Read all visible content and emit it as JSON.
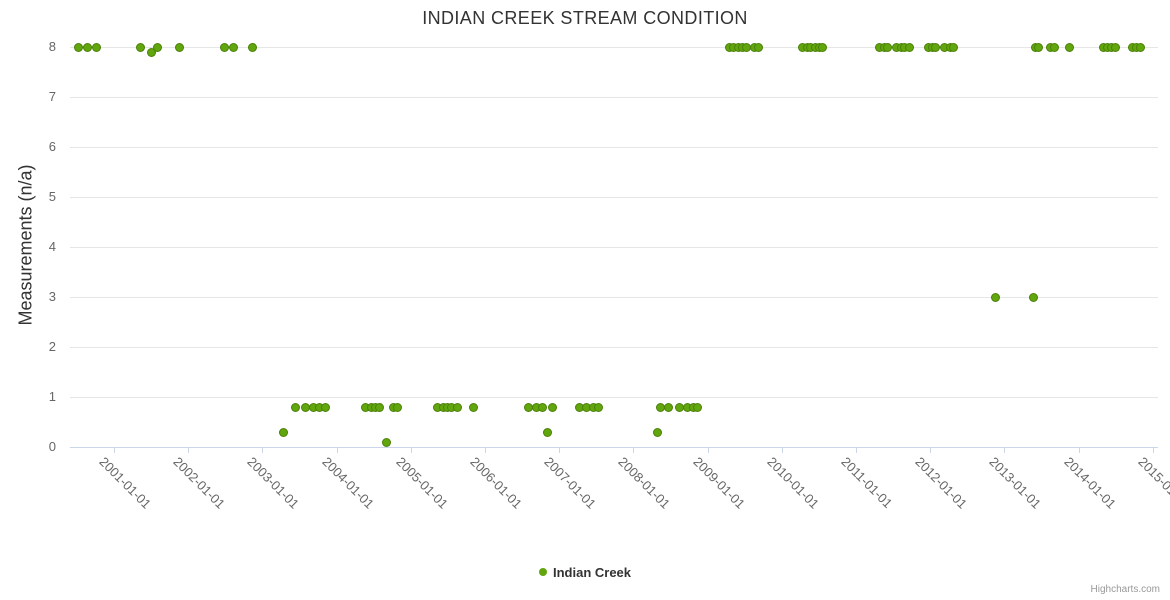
{
  "colors": {
    "series_green": "#61a60c",
    "title_text": "#333333",
    "axis_label_text": "#666666",
    "gridline": "#e6e6e6",
    "axis_line": "#ccd6eb",
    "credits_text": "#999999"
  },
  "credits": {
    "label": "Highcharts.com"
  },
  "chart_data": {
    "type": "scatter",
    "title": "INDIAN CREEK STREAM CONDITION",
    "xlabel": "",
    "ylabel": "Measurements (n/a)",
    "ylim": [
      0,
      8.3
    ],
    "yticks": [
      0,
      1,
      2,
      3,
      4,
      5,
      6,
      7,
      8
    ],
    "xtick_labels": [
      "2001-01-01",
      "2002-01-01",
      "2003-01-01",
      "2004-01-01",
      "2005-01-01",
      "2006-01-01",
      "2007-01-01",
      "2008-01-01",
      "2009-01-01",
      "2010-01-01",
      "2011-01-01",
      "2012-01-01",
      "2013-01-01",
      "2014-01-01",
      "2015-01-01"
    ],
    "grid": "horizontal-only",
    "legend_position": "bottom-center",
    "series": [
      {
        "name": "Indian Creek",
        "color": "#61a60c",
        "points": [
          {
            "date": "2000-07-11",
            "value": 8
          },
          {
            "date": "2000-08-25",
            "value": 8
          },
          {
            "date": "2000-10-08",
            "value": 8
          },
          {
            "date": "2001-05-08",
            "value": 8
          },
          {
            "date": "2001-07-04",
            "value": 7.9
          },
          {
            "date": "2001-08-03",
            "value": 8
          },
          {
            "date": "2001-11-17",
            "value": 8
          },
          {
            "date": "2002-06-27",
            "value": 8
          },
          {
            "date": "2002-08-10",
            "value": 8
          },
          {
            "date": "2002-11-14",
            "value": 8
          },
          {
            "date": "2003-04-12",
            "value": 0.3
          },
          {
            "date": "2003-06-13",
            "value": 0.8
          },
          {
            "date": "2003-07-31",
            "value": 0.8
          },
          {
            "date": "2003-09-09",
            "value": 0.8
          },
          {
            "date": "2003-10-08",
            "value": 0.8
          },
          {
            "date": "2003-11-06",
            "value": 0.8
          },
          {
            "date": "2004-05-21",
            "value": 0.8
          },
          {
            "date": "2004-06-20",
            "value": 0.8
          },
          {
            "date": "2004-07-11",
            "value": 0.8
          },
          {
            "date": "2004-07-30",
            "value": 0.8
          },
          {
            "date": "2004-09-05",
            "value": 0.1
          },
          {
            "date": "2004-10-07",
            "value": 0.8
          },
          {
            "date": "2004-10-26",
            "value": 0.8
          },
          {
            "date": "2005-05-12",
            "value": 0.8
          },
          {
            "date": "2005-06-12",
            "value": 0.8
          },
          {
            "date": "2005-07-01",
            "value": 0.8
          },
          {
            "date": "2005-07-20",
            "value": 0.8
          },
          {
            "date": "2005-08-18",
            "value": 0.8
          },
          {
            "date": "2005-11-06",
            "value": 0.8
          },
          {
            "date": "2006-07-31",
            "value": 0.8
          },
          {
            "date": "2006-09-09",
            "value": 0.8
          },
          {
            "date": "2006-10-08",
            "value": 0.8
          },
          {
            "date": "2006-11-06",
            "value": 0.3
          },
          {
            "date": "2006-11-28",
            "value": 0.8
          },
          {
            "date": "2007-04-12",
            "value": 0.8
          },
          {
            "date": "2007-05-15",
            "value": 0.8
          },
          {
            "date": "2007-06-20",
            "value": 0.8
          },
          {
            "date": "2007-07-11",
            "value": 0.8
          },
          {
            "date": "2008-04-30",
            "value": 0.3
          },
          {
            "date": "2008-05-11",
            "value": 0.8
          },
          {
            "date": "2008-06-20",
            "value": 0.8
          },
          {
            "date": "2008-08-14",
            "value": 0.8
          },
          {
            "date": "2008-09-23",
            "value": 0.8
          },
          {
            "date": "2008-10-22",
            "value": 0.8
          },
          {
            "date": "2008-11-10",
            "value": 0.8
          },
          {
            "date": "2009-04-19",
            "value": 8
          },
          {
            "date": "2009-05-08",
            "value": 8
          },
          {
            "date": "2009-06-02",
            "value": 8
          },
          {
            "date": "2009-06-21",
            "value": 8
          },
          {
            "date": "2009-07-12",
            "value": 8
          },
          {
            "date": "2009-08-21",
            "value": 8
          },
          {
            "date": "2009-09-09",
            "value": 8
          },
          {
            "date": "2010-04-12",
            "value": 8
          },
          {
            "date": "2010-05-04",
            "value": 8
          },
          {
            "date": "2010-05-22",
            "value": 8
          },
          {
            "date": "2010-06-13",
            "value": 8
          },
          {
            "date": "2010-07-02",
            "value": 8
          },
          {
            "date": "2010-07-20",
            "value": 8
          },
          {
            "date": "2011-04-27",
            "value": 8
          },
          {
            "date": "2011-05-19",
            "value": 8
          },
          {
            "date": "2011-06-06",
            "value": 8
          },
          {
            "date": "2011-07-20",
            "value": 8
          },
          {
            "date": "2011-08-11",
            "value": 8
          },
          {
            "date": "2011-08-29",
            "value": 8
          },
          {
            "date": "2011-09-20",
            "value": 8
          },
          {
            "date": "2011-12-21",
            "value": 8
          },
          {
            "date": "2012-01-11",
            "value": 8
          },
          {
            "date": "2012-01-29",
            "value": 8
          },
          {
            "date": "2012-03-10",
            "value": 8
          },
          {
            "date": "2012-04-08",
            "value": 8
          },
          {
            "date": "2012-04-23",
            "value": 8
          },
          {
            "date": "2012-11-17",
            "value": 3
          },
          {
            "date": "2013-05-23",
            "value": 3
          },
          {
            "date": "2013-05-30",
            "value": 8
          },
          {
            "date": "2013-06-17",
            "value": 8
          },
          {
            "date": "2013-08-14",
            "value": 8
          },
          {
            "date": "2013-09-05",
            "value": 8
          },
          {
            "date": "2013-11-17",
            "value": 8
          },
          {
            "date": "2014-05-04",
            "value": 8
          },
          {
            "date": "2014-05-22",
            "value": 8
          },
          {
            "date": "2014-06-13",
            "value": 8
          },
          {
            "date": "2014-07-02",
            "value": 8
          },
          {
            "date": "2014-09-24",
            "value": 8
          },
          {
            "date": "2014-10-12",
            "value": 8
          },
          {
            "date": "2014-11-03",
            "value": 8
          }
        ]
      }
    ]
  }
}
